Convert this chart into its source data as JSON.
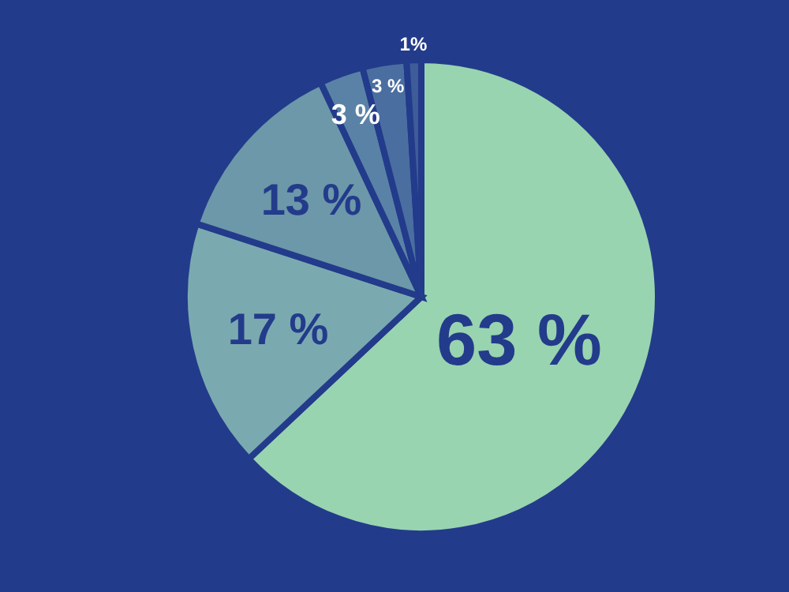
{
  "chart_data": {
    "type": "pie",
    "categories": [
      null,
      null,
      null,
      null,
      null,
      null
    ],
    "values": [
      63,
      17,
      13,
      3,
      3,
      1
    ],
    "colors": [
      "#98d4b0",
      "#7aaab0",
      "#6c98a9",
      "#5a82a6",
      "#4b6ea0",
      "#3e5c98"
    ],
    "value_labels": [
      "63 %",
      "17 %",
      "13 %",
      "3 %",
      "3 %",
      "1%"
    ],
    "legend": false
  }
}
